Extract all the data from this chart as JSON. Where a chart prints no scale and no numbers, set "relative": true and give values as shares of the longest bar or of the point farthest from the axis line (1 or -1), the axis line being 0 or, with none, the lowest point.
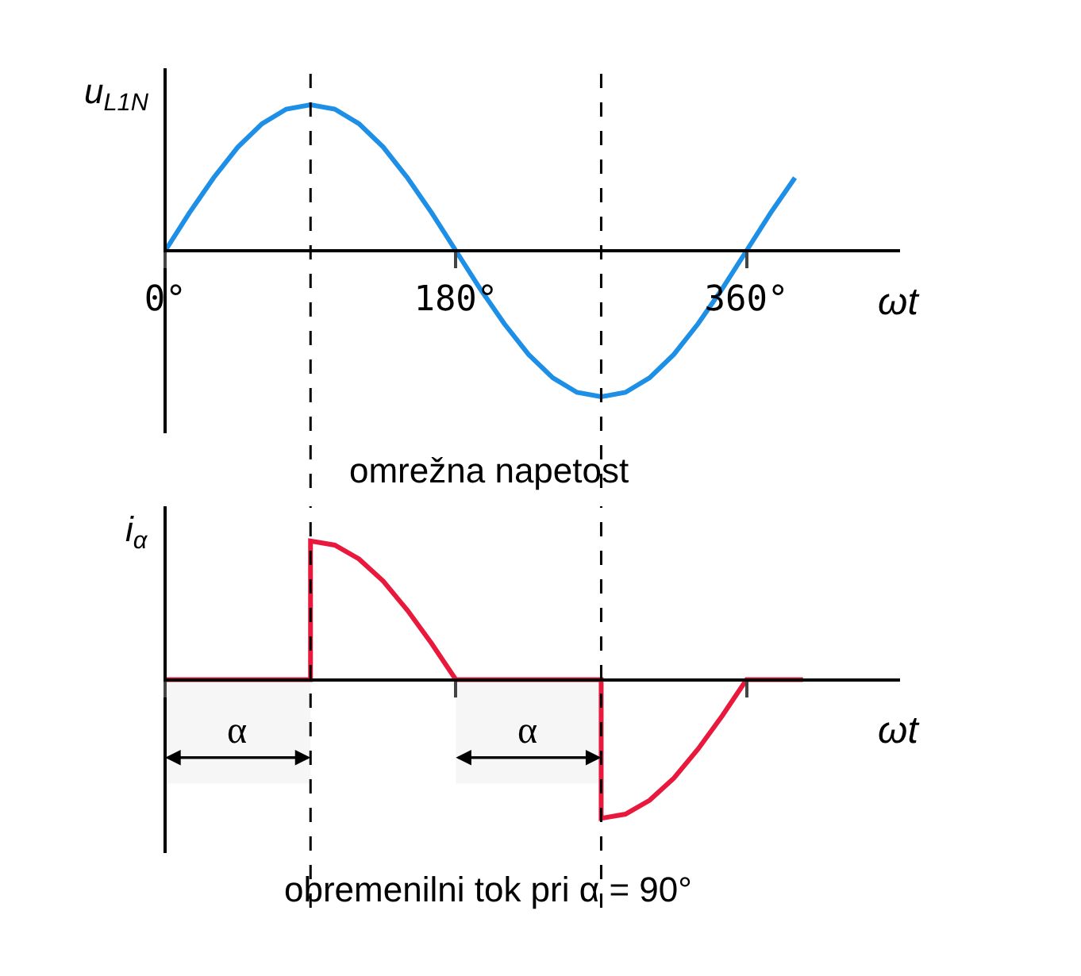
{
  "chart_data": [
    {
      "type": "line",
      "relative": true,
      "xlabel": "ωt",
      "ylabel": "u$_{L1N}$",
      "xlim": [
        0,
        455
      ],
      "xticks": [
        {
          "value": 0,
          "label": "0°"
        },
        {
          "value": 180,
          "label": "180°"
        },
        {
          "value": 360,
          "label": "360°"
        }
      ],
      "tick_labels": "x",
      "legend": false,
      "line_style": "solid",
      "x": [
        0,
        15,
        30,
        45,
        60,
        75,
        90,
        105,
        120,
        135,
        150,
        165,
        180,
        195,
        210,
        225,
        240,
        255,
        270,
        285,
        300,
        315,
        330,
        345,
        360,
        375,
        390
      ],
      "series": [
        {
          "color": "#1e8fe6",
          "values": [
            0,
            0.26,
            0.5,
            0.71,
            0.87,
            0.97,
            1,
            0.97,
            0.87,
            0.71,
            0.5,
            0.26,
            0,
            -0.26,
            -0.5,
            -0.71,
            -0.87,
            -0.97,
            -1,
            -0.97,
            -0.87,
            -0.71,
            -0.5,
            -0.26,
            0,
            0.26,
            0.5
          ]
        }
      ],
      "ref_lines": [
        {
          "axis": "x",
          "value": 90,
          "line_style": "dashed"
        },
        {
          "axis": "x",
          "value": 270,
          "line_style": "dashed"
        }
      ],
      "annotations": [
        "omrežna napetost"
      ]
    },
    {
      "type": "line",
      "relative": true,
      "xlabel": "ωt",
      "ylabel": "i$_{α}$",
      "xlim": [
        0,
        455
      ],
      "xticks": [
        {
          "value": 0,
          "label": null
        },
        {
          "value": 180,
          "label": null
        },
        {
          "value": 360,
          "label": null
        }
      ],
      "tick_labels": false,
      "legend": false,
      "line_style": "solid",
      "x": [
        0,
        90,
        90,
        105,
        120,
        135,
        150,
        165,
        180,
        270,
        270,
        285,
        300,
        315,
        330,
        345,
        360,
        395
      ],
      "series": [
        {
          "color": "#e8193c",
          "values": [
            0,
            0,
            1,
            0.97,
            0.87,
            0.71,
            0.5,
            0.26,
            0,
            0,
            -1,
            -0.97,
            -0.87,
            -0.71,
            -0.5,
            -0.26,
            0,
            0
          ]
        }
      ],
      "ref_lines": [
        {
          "axis": "x",
          "value": 90,
          "line_style": "dashed"
        },
        {
          "axis": "x",
          "value": 270,
          "line_style": "dashed"
        }
      ],
      "bands": [
        {
          "axis": "x",
          "from": 0,
          "to": 90,
          "label": "α"
        },
        {
          "axis": "x",
          "from": 180,
          "to": 270,
          "label": "α"
        }
      ],
      "annotations": [
        "obremenilni tok pri α = 90°"
      ]
    }
  ]
}
